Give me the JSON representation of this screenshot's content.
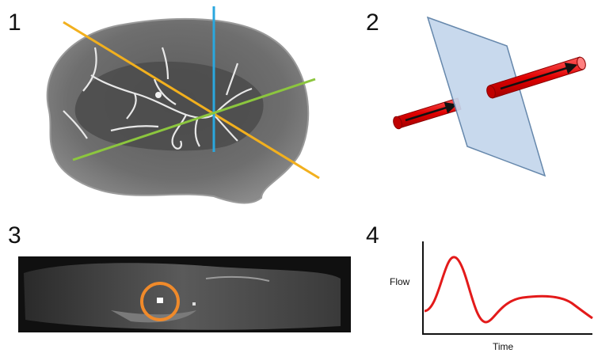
{
  "panels": [
    {
      "number": "1"
    },
    {
      "number": "2"
    },
    {
      "number": "3"
    },
    {
      "number": "4"
    }
  ],
  "flow_chart": {
    "ylabel": "Flow",
    "xlabel": "Time"
  },
  "colors": {
    "orange_plane": "#f2b01e",
    "blue_plane": "#2aa7de",
    "green_plane": "#8cc63e",
    "vessel_red": "#e00000",
    "slice_plane": "#c4d6ec",
    "roi_circle": "#f08a2a",
    "flow_curve": "#e31a1a"
  }
}
